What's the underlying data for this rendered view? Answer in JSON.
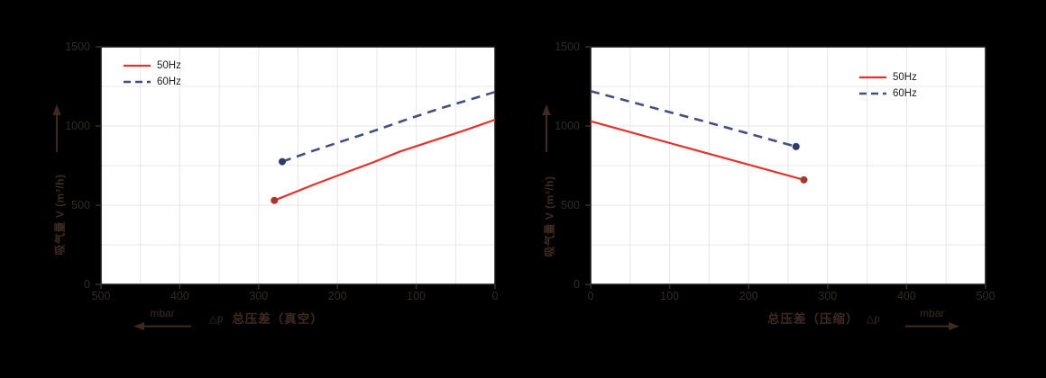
{
  "page": {
    "background": "#000000",
    "colors": {
      "accent_red": "#e4322b",
      "accent_navy": "#42507f",
      "red_dot": "#a8342b",
      "navy_dot": "#2e3c6a",
      "grid": "#e7e7ea",
      "plot_frame": "#1a1a1a",
      "tick_text": "#2f2b28",
      "axis_text": "#3e2a20"
    }
  },
  "chart_data": [
    {
      "type": "line",
      "id": "vacuum",
      "y_title": "吸气量 V (m³/h)",
      "x_unit": "mbar",
      "delta_label": "△p",
      "x_title": "总压差（真空）",
      "x_range": [
        500,
        0
      ],
      "y_range": [
        0,
        1500
      ],
      "x_ticks": [
        500,
        400,
        300,
        200,
        100,
        0
      ],
      "y_ticks": [
        0,
        500,
        1000,
        1500
      ],
      "grid_step_x": 50,
      "grid_step_y": 250,
      "legend_position": "top-left",
      "series": [
        {
          "name": "50Hz",
          "color": "#e4322b",
          "dash": "solid",
          "dot_color": "#a8342b",
          "dot_point": [
            280,
            530
          ],
          "points": [
            [
              280,
              530
            ],
            [
              230,
              630
            ],
            [
              190,
              705
            ],
            [
              155,
              770
            ],
            [
              120,
              840
            ],
            [
              80,
              905
            ],
            [
              40,
              970
            ],
            [
              0,
              1040
            ]
          ]
        },
        {
          "name": "60Hz",
          "color": "#42507f",
          "dash": "dashed",
          "dot_color": "#2e3c6a",
          "dot_point": [
            270,
            775
          ],
          "points": [
            [
              270,
              775
            ],
            [
              230,
              845
            ],
            [
              190,
              910
            ],
            [
              150,
              975
            ],
            [
              110,
              1045
            ],
            [
              70,
              1110
            ],
            [
              40,
              1155
            ],
            [
              0,
              1215
            ]
          ]
        }
      ]
    },
    {
      "type": "line",
      "id": "compression",
      "y_title": "吸气量 V (m³/h)",
      "x_unit": "mbar",
      "delta_label": "△p",
      "x_title": "总压差（压缩）",
      "x_range": [
        0,
        500
      ],
      "y_range": [
        0,
        1500
      ],
      "x_ticks": [
        0,
        100,
        200,
        300,
        400,
        500
      ],
      "y_ticks": [
        0,
        500,
        1000,
        1500
      ],
      "grid_step_x": 50,
      "grid_step_y": 250,
      "legend_position": "top-right",
      "series": [
        {
          "name": "50Hz",
          "color": "#e4322b",
          "dash": "solid",
          "dot_color": "#a8342b",
          "dot_point": [
            270,
            660
          ],
          "points": [
            [
              0,
              1030
            ],
            [
              135,
              845
            ],
            [
              270,
              660
            ]
          ]
        },
        {
          "name": "60Hz",
          "color": "#42507f",
          "dash": "dashed",
          "dot_color": "#2e3c6a",
          "dot_point": [
            260,
            870
          ],
          "points": [
            [
              0,
              1220
            ],
            [
              130,
              1048
            ],
            [
              260,
              870
            ]
          ]
        }
      ]
    }
  ]
}
